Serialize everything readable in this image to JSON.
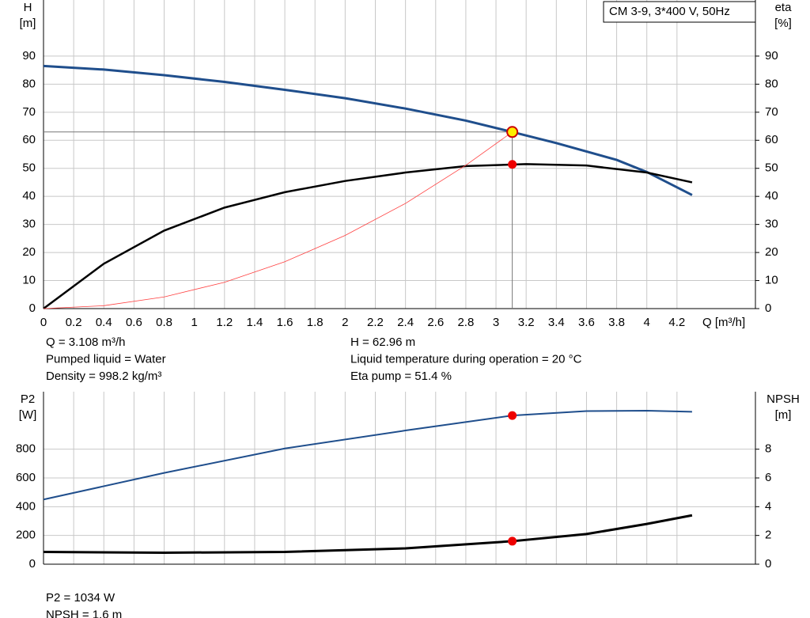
{
  "chart_data": [
    {
      "type": "line",
      "title": "CM 3-9, 3*400 V, 50Hz",
      "y_label": [
        "H",
        "[m]"
      ],
      "y2_label": [
        "eta",
        "[%]"
      ],
      "x_label": "Q [m³/h]",
      "xlim": [
        0,
        4.72
      ],
      "xticks": [
        0,
        0.2,
        0.4,
        0.6,
        0.8,
        1.0,
        1.2,
        1.4,
        1.6,
        1.8,
        2.0,
        2.2,
        2.4,
        2.6,
        2.8,
        3.0,
        3.2,
        3.4,
        3.6,
        3.8,
        4.0,
        4.2
      ],
      "ylim": [
        0,
        110
      ],
      "yticks": [
        0,
        10,
        20,
        30,
        40,
        50,
        60,
        70,
        80,
        90
      ],
      "y2lim": [
        0,
        110
      ],
      "y2ticks": [
        0,
        10,
        20,
        30,
        40,
        50,
        60,
        70,
        80,
        90
      ],
      "grid": true,
      "series": [
        {
          "color": "#1f4e8c",
          "width": 3,
          "x": [
            0,
            0.4,
            0.8,
            1.2,
            1.6,
            2.0,
            2.4,
            2.8,
            3.108,
            3.4,
            3.8,
            4.0,
            4.3
          ],
          "values": [
            86.5,
            85.2,
            83.2,
            80.8,
            78,
            75,
            71.3,
            67,
            62.96,
            59,
            53,
            48.7,
            40.5
          ]
        },
        {
          "color": "#000000",
          "width": 2.5,
          "axis": "y2",
          "x": [
            0,
            0.2,
            0.4,
            0.8,
            1.2,
            1.6,
            2.0,
            2.4,
            2.8,
            3.2,
            3.6,
            4.0,
            4.3
          ],
          "values": [
            0,
            8,
            16,
            27.8,
            36,
            41.5,
            45.5,
            48.5,
            50.8,
            51.5,
            51,
            48.5,
            45
          ]
        },
        {
          "color": "#ff4040",
          "width": 0.8,
          "x": [
            0,
            0.4,
            0.8,
            1.2,
            1.6,
            2.0,
            2.4,
            2.8,
            3.108
          ],
          "values": [
            0,
            1.04,
            4.17,
            9.38,
            16.7,
            26.1,
            37.5,
            51.1,
            62.96
          ]
        }
      ],
      "markers": [
        {
          "x": 3.108,
          "y": 62.96,
          "color": "#ffee00",
          "guides": true
        },
        {
          "x": 3.108,
          "y": 51.4,
          "color": "#ee0000",
          "axis": "y2"
        }
      ],
      "notes": [
        [
          "Q = 3.108 m³/h",
          "Pumped liquid = Water",
          "Density = 998.2 kg/m³"
        ],
        [
          "H = 62.96 m",
          "Liquid temperature during operation = 20 °C",
          "Eta pump = 51.4 %"
        ]
      ]
    },
    {
      "type": "line",
      "y_label": [
        "P2",
        "[W]"
      ],
      "y2_label": [
        "NPSH",
        "[m]"
      ],
      "xlim": [
        0,
        4.72
      ],
      "ylim": [
        0,
        1200
      ],
      "yticks": [
        0,
        200,
        400,
        600,
        800
      ],
      "y2lim": [
        0,
        12
      ],
      "y2ticks": [
        0,
        2,
        4,
        6,
        8
      ],
      "grid": true,
      "series": [
        {
          "color": "#1f4e8c",
          "width": 2,
          "x": [
            0,
            0.8,
            1.6,
            2.4,
            3.108,
            3.6,
            4.0,
            4.3
          ],
          "values": [
            450,
            635,
            805,
            930,
            1034,
            1065,
            1068,
            1060
          ]
        },
        {
          "color": "#000000",
          "width": 3,
          "axis": "y2",
          "x": [
            0,
            0.8,
            1.6,
            2.4,
            3.108,
            3.6,
            4.0,
            4.3
          ],
          "values": [
            0.85,
            0.8,
            0.85,
            1.1,
            1.6,
            2.1,
            2.8,
            3.4
          ]
        }
      ],
      "markers": [
        {
          "x": 3.108,
          "y": 1034,
          "color": "#ee0000"
        },
        {
          "x": 3.108,
          "y": 1.6,
          "color": "#ee0000",
          "axis": "y2"
        }
      ],
      "notes": [
        [
          "P2 = 1034 W",
          "NPSH = 1.6 m"
        ]
      ]
    }
  ]
}
